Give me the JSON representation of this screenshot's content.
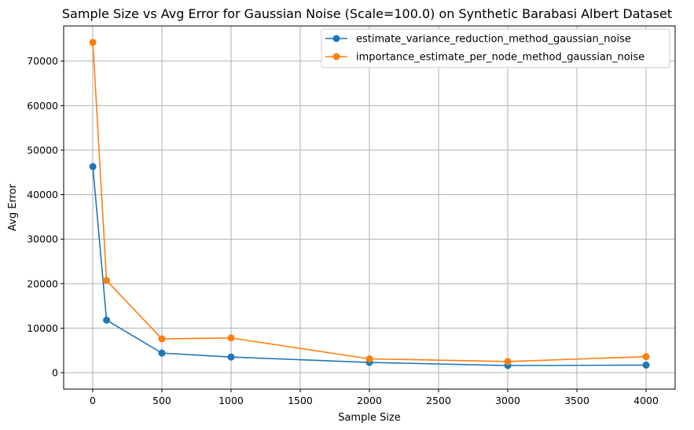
{
  "chart_data": {
    "type": "line",
    "title": "Sample Size vs Avg Error for Gaussian Noise (Scale=100.0) on Synthetic Barabasi Albert Dataset",
    "xlabel": "Sample Size",
    "ylabel": "Avg Error",
    "xlim": [
      -210,
      4210
    ],
    "ylim": [
      -3700,
      77900
    ],
    "xticks": [
      0,
      500,
      1000,
      1500,
      2000,
      2500,
      3000,
      3500,
      4000
    ],
    "yticks": [
      0,
      10000,
      20000,
      30000,
      40000,
      50000,
      60000,
      70000
    ],
    "grid": true,
    "legend_position": "top-right",
    "x": [
      1,
      100,
      500,
      1000,
      2000,
      3000,
      4000
    ],
    "series": [
      {
        "name": "estimate_variance_reduction_method_gaussian_noise",
        "color": "#1f77b4",
        "values": [
          46300,
          11800,
          4400,
          3500,
          2300,
          1600,
          1700
        ]
      },
      {
        "name": "importance_estimate_per_node_method_gaussian_noise",
        "color": "#ff7f0e",
        "values": [
          74200,
          20700,
          7600,
          7800,
          3100,
          2500,
          3600
        ]
      }
    ]
  }
}
